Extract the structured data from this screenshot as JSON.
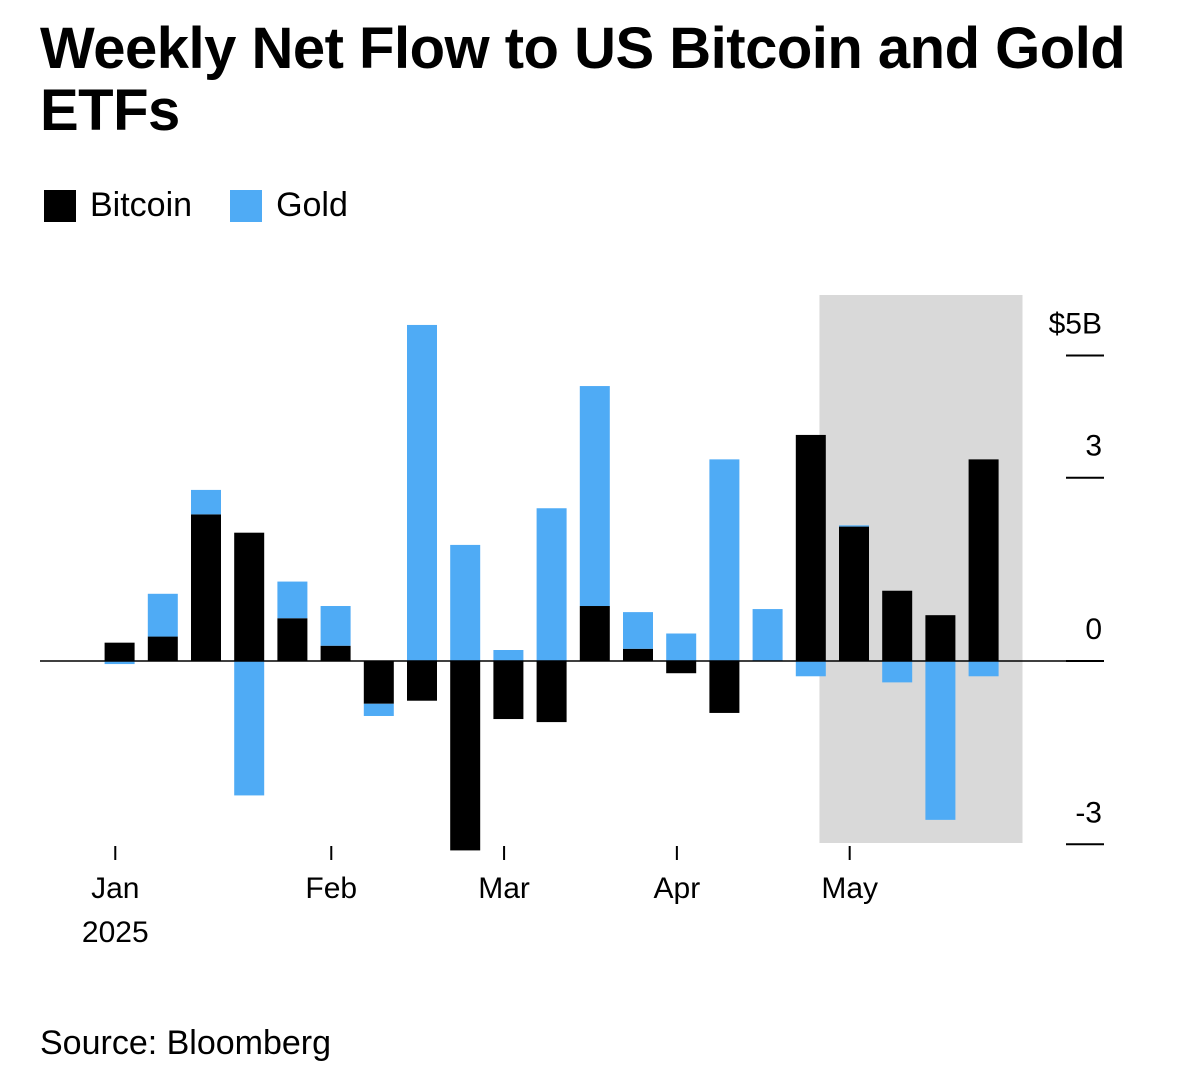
{
  "title": "Weekly Net Flow to US Bitcoin and Gold ETFs",
  "source": "Source: Bloomberg",
  "colors": {
    "bitcoin": "#000000",
    "gold": "#4fabf5",
    "highlight": "#d9d9d9"
  },
  "chart_data": {
    "type": "bar",
    "stacked": true,
    "title": "Weekly Net Flow to US Bitcoin and Gold ETFs",
    "legend": [
      "Bitcoin",
      "Gold"
    ],
    "legend_position": "top-left",
    "y_axis_position": "right",
    "y_unit": "$B",
    "ylim": [
      -3,
      6
    ],
    "y_ticks": [
      -3,
      0,
      3,
      5
    ],
    "y_tick_labels": [
      "-3",
      "0",
      "3",
      "$5B"
    ],
    "x_ticks": [
      {
        "label": "Jan",
        "sub": "2025",
        "week": 0.4
      },
      {
        "label": "Feb",
        "sub": "",
        "week": 5.4
      },
      {
        "label": "Mar",
        "sub": "",
        "week": 9.4
      },
      {
        "label": "Apr",
        "sub": "",
        "week": 13.4
      },
      {
        "label": "May",
        "sub": "",
        "week": 17.4
      }
    ],
    "highlight_weeks": [
      16.7,
      21.4
    ],
    "series": [
      {
        "name": "Bitcoin",
        "color": "#000000",
        "values": [
          0.3,
          0.4,
          2.4,
          2.1,
          0.7,
          0.25,
          -0.7,
          -0.65,
          -3.1,
          -0.95,
          -1.0,
          0.9,
          0.2,
          -0.2,
          -0.85,
          0.0,
          3.7,
          2.2,
          1.15,
          0.75,
          3.3
        ]
      },
      {
        "name": "Gold",
        "color": "#4fabf5",
        "values": [
          -0.05,
          0.7,
          0.4,
          -2.2,
          0.6,
          0.65,
          -0.2,
          5.5,
          1.9,
          0.18,
          2.5,
          3.6,
          0.6,
          0.45,
          3.3,
          0.85,
          -0.25,
          0.02,
          -0.35,
          -2.6,
          -0.25
        ]
      }
    ]
  }
}
